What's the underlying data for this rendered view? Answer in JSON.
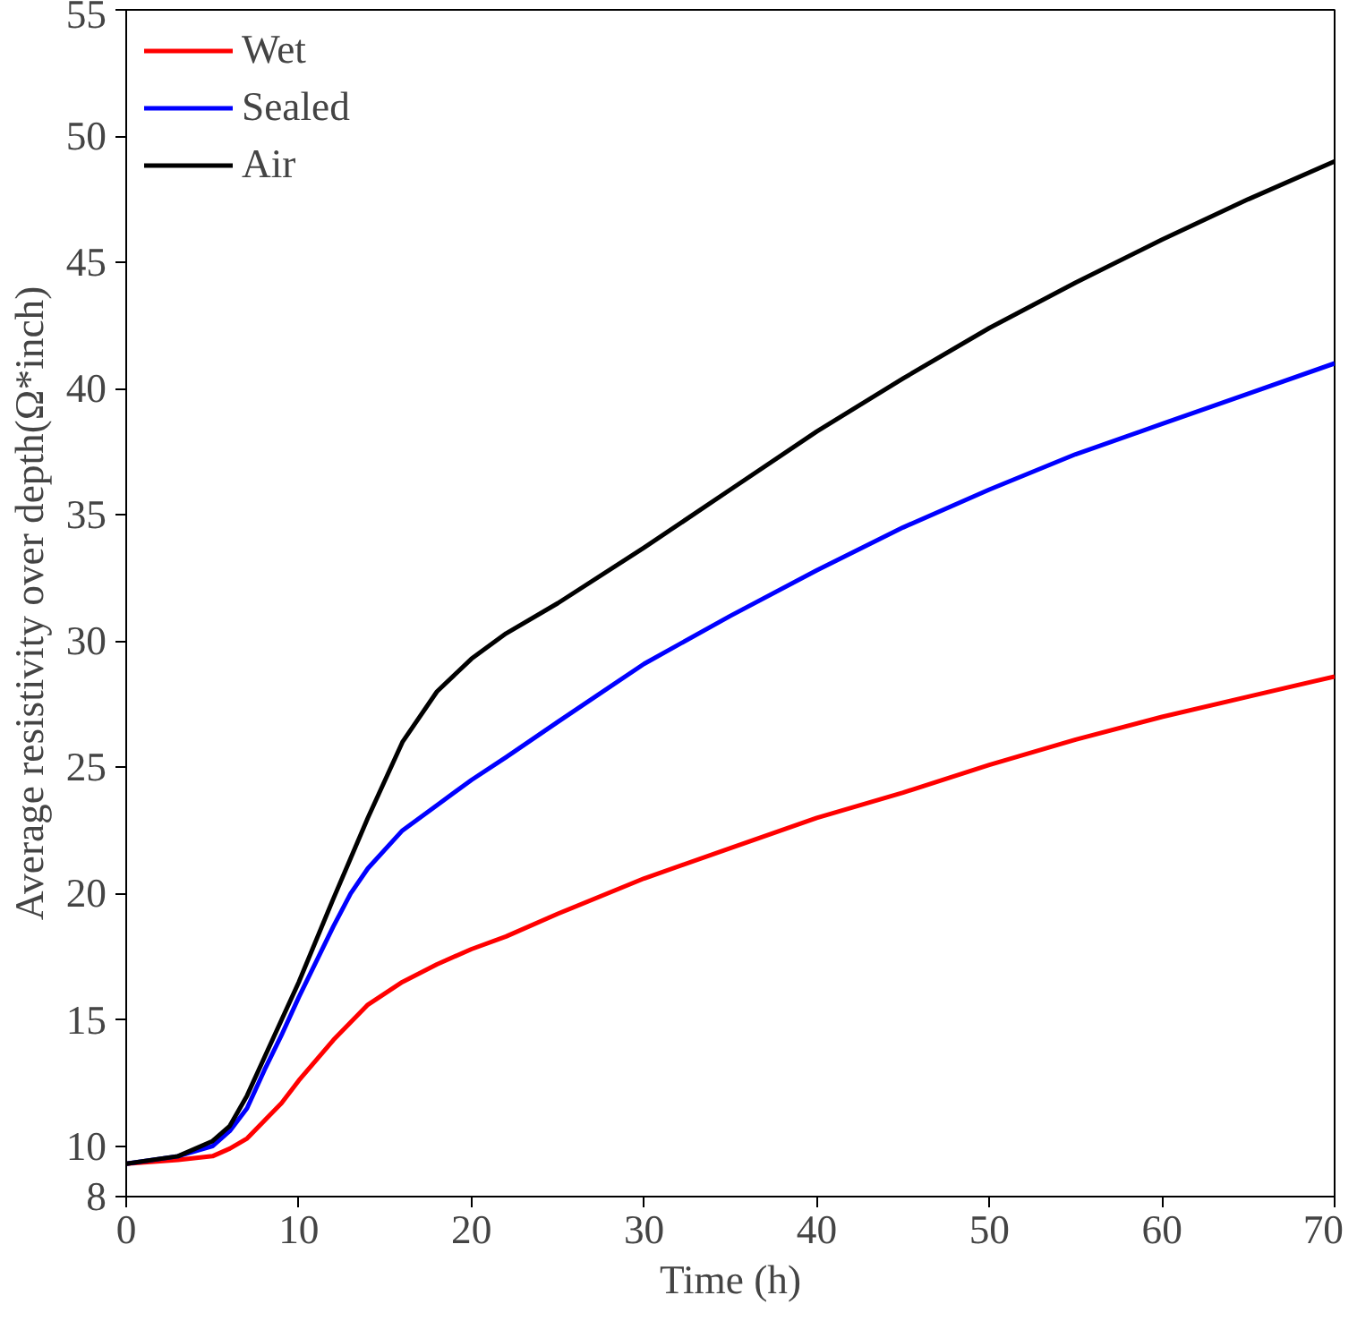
{
  "chart_data": {
    "type": "line",
    "xlabel": "Time (h)",
    "ylabel": "Average resistivity over depth(Ω*inch)",
    "xlim": [
      0,
      70
    ],
    "ylim": [
      8,
      55
    ],
    "xticks": [
      0,
      10,
      20,
      30,
      40,
      50,
      60,
      70
    ],
    "yticks": [
      8,
      10,
      15,
      20,
      25,
      30,
      35,
      40,
      45,
      50,
      55
    ],
    "grid": false,
    "legend": "top left",
    "line_style": "solid",
    "marker": "none",
    "x": [
      0,
      3,
      5,
      6,
      7,
      8,
      9,
      10,
      12,
      13,
      14,
      16,
      18,
      20,
      22,
      25,
      30,
      35,
      40,
      45,
      50,
      55,
      60,
      65,
      70
    ],
    "series": [
      {
        "name": "Wet",
        "color": "#ff0000",
        "values": [
          9.3,
          9.45,
          9.6,
          9.9,
          10.3,
          11,
          11.7,
          12.6,
          14.2,
          14.9,
          15.6,
          16.5,
          17.2,
          17.8,
          18.3,
          19.2,
          20.6,
          21.8,
          23,
          24,
          25.1,
          26.1,
          27,
          27.8,
          28.6
        ]
      },
      {
        "name": "Sealed",
        "color": "#0000ff",
        "values": [
          9.3,
          9.6,
          10,
          10.6,
          11.5,
          13,
          14.4,
          15.9,
          18.7,
          20,
          21,
          22.5,
          23.5,
          24.5,
          25.4,
          26.8,
          29.1,
          31,
          32.8,
          34.5,
          36,
          37.4,
          38.6,
          39.8,
          41
        ]
      },
      {
        "name": "Air",
        "color": "#000000",
        "values": [
          9.3,
          9.6,
          10.2,
          10.8,
          12,
          13.5,
          15,
          16.5,
          19.8,
          21.4,
          23,
          26,
          28,
          29.3,
          30.3,
          31.5,
          33.7,
          36,
          38.3,
          40.4,
          42.4,
          44.2,
          45.9,
          47.5,
          49
        ]
      }
    ]
  }
}
